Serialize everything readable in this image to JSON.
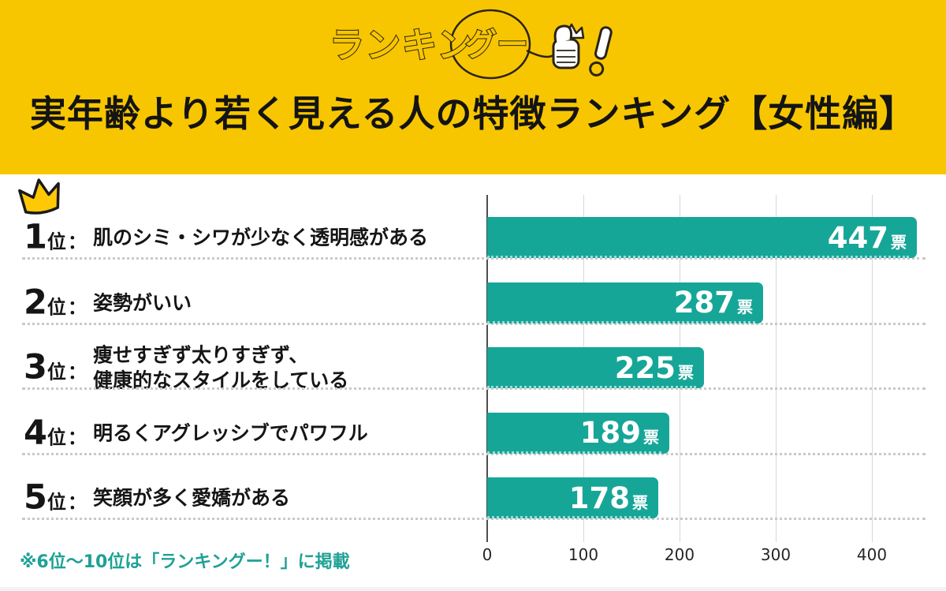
{
  "header": {
    "title": "実年齢より若く見える人の特徴ランキング【女性編】"
  },
  "logo": {
    "text_left": "ランキン",
    "text_bubble": "グー",
    "exclamation": "！",
    "icon": "thumbs-up-with-crown"
  },
  "chart_data": {
    "type": "bar",
    "orientation": "horizontal",
    "title": "実年齢より若く見える人の特徴ランキング【女性編】",
    "unit_label": "票",
    "rank_suffix": "位",
    "rank_colon": "：",
    "rank1_icon": "crown",
    "categories": [
      "肌のシミ・シワが少なく透明感がある",
      "姿勢がいい",
      "痩せすぎず太りすぎず、健康的なスタイルをしている",
      "明るくアグレッシブでパワフル",
      "笑顔が多く愛嬌がある"
    ],
    "values": [
      447,
      287,
      225,
      189,
      178
    ],
    "rows": [
      {
        "rank": 1,
        "label_lines": [
          "肌のシミ・シワが少なく透明感がある"
        ],
        "value": 447
      },
      {
        "rank": 2,
        "label_lines": [
          "姿勢がいい"
        ],
        "value": 287
      },
      {
        "rank": 3,
        "label_lines": [
          "痩せすぎず太りすぎず、",
          "健康的なスタイルをしている"
        ],
        "value": 225
      },
      {
        "rank": 4,
        "label_lines": [
          "明るくアグレッシブでパワフル"
        ],
        "value": 189
      },
      {
        "rank": 5,
        "label_lines": [
          "笑顔が多く愛嬌がある"
        ],
        "value": 178
      }
    ],
    "x_ticks": [
      0,
      100,
      200,
      300,
      400
    ],
    "x_range": [
      0,
      455
    ],
    "grid": true,
    "legend": "none",
    "xlabel": "",
    "ylabel": ""
  },
  "footer": {
    "note": "※6位〜10位は「ランキングー！」に掲載"
  },
  "colors": {
    "yellow": "#F7C600",
    "teal": "#16A698",
    "footer": "#1EA195",
    "ink": "#141414"
  }
}
